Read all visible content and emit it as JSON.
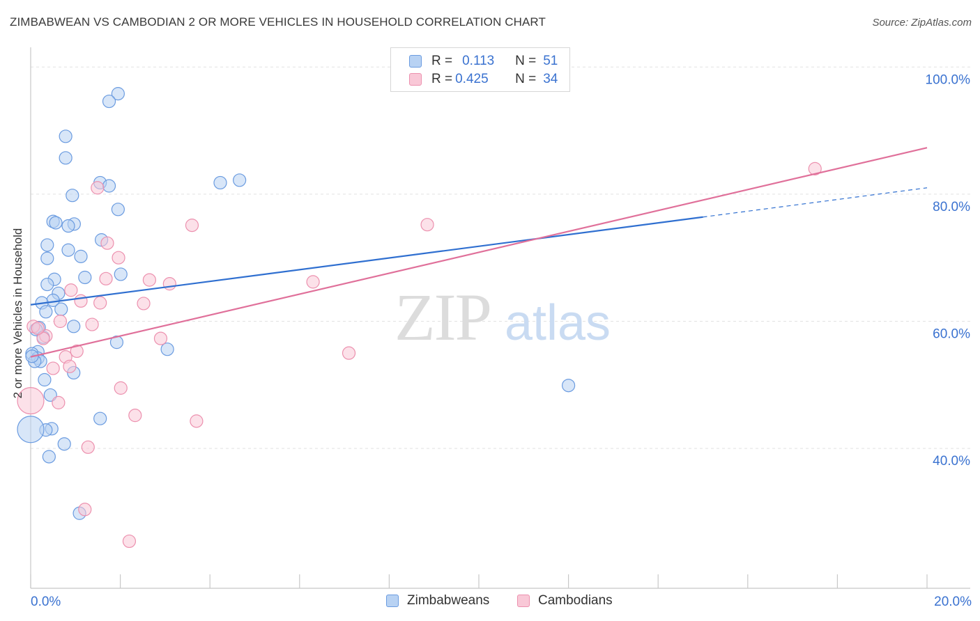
{
  "title": "ZIMBABWEAN VS CAMBODIAN 2 OR MORE VEHICLES IN HOUSEHOLD CORRELATION CHART",
  "source": "Source: ZipAtlas.com",
  "watermark": {
    "zip": "ZIP",
    "atlas": "atlas"
  },
  "legend": {
    "r_label": "R =",
    "n_label": "N =",
    "rows": [
      {
        "r": "0.113",
        "n": "51"
      },
      {
        "r": "0.425",
        "n": "34"
      }
    ]
  },
  "bottom_legend": [
    "Zimbabweans",
    "Cambodians"
  ],
  "colors": {
    "blue_fill": "#b8d2f3",
    "blue_stroke": "#6a9be0",
    "blue_line": "#2f6fd0",
    "pink_fill": "#f9c8d7",
    "pink_stroke": "#ec90ae",
    "pink_line": "#e0709a",
    "tick_label": "#3a72d0",
    "grid": "#e2e2e2"
  },
  "chart_data": {
    "type": "scatter",
    "title": "ZIMBABWEAN VS CAMBODIAN 2 OR MORE VEHICLES IN HOUSEHOLD CORRELATION CHART",
    "xlabel": "",
    "ylabel": "2 or more Vehicles in Household",
    "xlim": [
      0,
      20
    ],
    "ylim": [
      18,
      102
    ],
    "x_tick_labels": [
      "0.0%",
      "20.0%"
    ],
    "y_ticks": [
      {
        "value": 100,
        "label": "100.0%"
      },
      {
        "value": 80,
        "label": "80.0%"
      },
      {
        "value": 60,
        "label": "60.0%"
      },
      {
        "value": 40,
        "label": "40.0%"
      }
    ],
    "series": [
      {
        "name": "Zimbabweans",
        "r": 0.113,
        "n": 51,
        "trend": {
          "x0": 0,
          "y0": 62.6,
          "x1": 15.0,
          "y1": 76.4,
          "dash_to_x": 20.0,
          "dash_to_y": 81.0
        },
        "points": [
          [
            1.95,
            95.8
          ],
          [
            1.75,
            94.6
          ],
          [
            0.78,
            89.1
          ],
          [
            0.78,
            85.7
          ],
          [
            1.55,
            81.8
          ],
          [
            1.75,
            81.3
          ],
          [
            4.23,
            81.8
          ],
          [
            4.66,
            82.2
          ],
          [
            0.93,
            79.8
          ],
          [
            1.95,
            77.6
          ],
          [
            0.5,
            75.7
          ],
          [
            0.97,
            75.3
          ],
          [
            0.56,
            75.5
          ],
          [
            0.84,
            75.0
          ],
          [
            1.58,
            72.8
          ],
          [
            0.37,
            72.0
          ],
          [
            0.84,
            71.2
          ],
          [
            1.12,
            70.2
          ],
          [
            0.37,
            69.9
          ],
          [
            2.01,
            67.4
          ],
          [
            1.21,
            66.9
          ],
          [
            0.53,
            66.6
          ],
          [
            0.37,
            65.8
          ],
          [
            0.62,
            64.4
          ],
          [
            0.5,
            63.3
          ],
          [
            0.25,
            62.9
          ],
          [
            0.68,
            61.9
          ],
          [
            0.34,
            61.5
          ],
          [
            0.96,
            59.2
          ],
          [
            0.19,
            59.0
          ],
          [
            0.12,
            58.7
          ],
          [
            0.28,
            57.5
          ],
          [
            1.92,
            56.7
          ],
          [
            3.05,
            55.6
          ],
          [
            0.16,
            55.2
          ],
          [
            0.03,
            54.9
          ],
          [
            0.16,
            54.2
          ],
          [
            0.22,
            53.7
          ],
          [
            0.09,
            53.7
          ],
          [
            0.96,
            51.9
          ],
          [
            0.31,
            50.8
          ],
          [
            0.44,
            48.4
          ],
          [
            12.0,
            49.9
          ],
          [
            1.55,
            44.7
          ],
          [
            0.47,
            43.1
          ],
          [
            0.34,
            42.9
          ],
          [
            0.0,
            43.0
          ],
          [
            0.75,
            40.7
          ],
          [
            0.41,
            38.7
          ],
          [
            1.09,
            29.8
          ],
          [
            0.03,
            54.5
          ]
        ]
      },
      {
        "name": "Cambodians",
        "r": 0.425,
        "n": 34,
        "trend": {
          "x0": 0,
          "y0": 54.4,
          "x1": 20.0,
          "y1": 87.3
        },
        "points": [
          [
            17.5,
            84.0
          ],
          [
            1.49,
            81.0
          ],
          [
            3.6,
            75.1
          ],
          [
            8.85,
            75.2
          ],
          [
            1.71,
            72.3
          ],
          [
            1.96,
            70.0
          ],
          [
            1.68,
            66.7
          ],
          [
            2.65,
            66.5
          ],
          [
            3.1,
            65.9
          ],
          [
            6.3,
            66.2
          ],
          [
            0.9,
            64.9
          ],
          [
            1.12,
            63.2
          ],
          [
            1.55,
            62.9
          ],
          [
            2.52,
            62.8
          ],
          [
            0.66,
            60.0
          ],
          [
            1.37,
            59.5
          ],
          [
            0.06,
            59.2
          ],
          [
            0.34,
            57.7
          ],
          [
            0.28,
            57.3
          ],
          [
            2.9,
            57.3
          ],
          [
            1.03,
            55.3
          ],
          [
            7.1,
            55.0
          ],
          [
            0.78,
            54.4
          ],
          [
            0.87,
            52.9
          ],
          [
            0.5,
            52.6
          ],
          [
            2.01,
            49.5
          ],
          [
            0.0,
            47.5
          ],
          [
            0.62,
            47.2
          ],
          [
            2.33,
            45.2
          ],
          [
            3.7,
            44.3
          ],
          [
            1.28,
            40.2
          ],
          [
            1.21,
            30.4
          ],
          [
            2.2,
            25.4
          ],
          [
            0.16,
            58.9
          ]
        ]
      }
    ]
  }
}
